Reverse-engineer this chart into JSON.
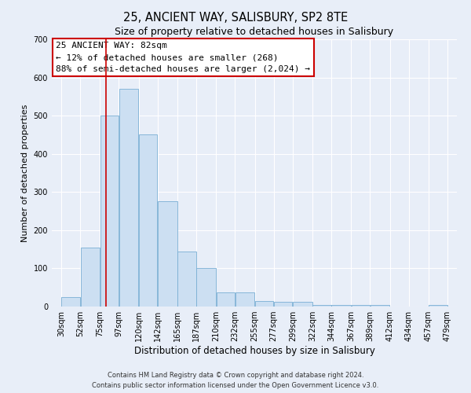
{
  "title": "25, ANCIENT WAY, SALISBURY, SP2 8TE",
  "subtitle": "Size of property relative to detached houses in Salisbury",
  "xlabel": "Distribution of detached houses by size in Salisbury",
  "ylabel": "Number of detached properties",
  "bar_left_edges": [
    30,
    52,
    75,
    97,
    120,
    142,
    165,
    187,
    210,
    232,
    255,
    277,
    299,
    322,
    344,
    367,
    389,
    412,
    434,
    457
  ],
  "bar_heights": [
    25,
    155,
    500,
    570,
    450,
    275,
    145,
    100,
    37,
    37,
    15,
    12,
    12,
    5,
    5,
    5,
    5,
    0,
    0,
    5
  ],
  "bar_widths": [
    22,
    23,
    22,
    23,
    22,
    23,
    22,
    23,
    22,
    23,
    22,
    22,
    23,
    22,
    23,
    22,
    23,
    22,
    23,
    22
  ],
  "bar_color": "#ccdff2",
  "bar_edgecolor": "#7aafd4",
  "vline_x": 82,
  "vline_color": "#cc0000",
  "ylim": [
    0,
    700
  ],
  "yticks": [
    0,
    100,
    200,
    300,
    400,
    500,
    600,
    700
  ],
  "xtick_labels": [
    "30sqm",
    "52sqm",
    "75sqm",
    "97sqm",
    "120sqm",
    "142sqm",
    "165sqm",
    "187sqm",
    "210sqm",
    "232sqm",
    "255sqm",
    "277sqm",
    "299sqm",
    "322sqm",
    "344sqm",
    "367sqm",
    "389sqm",
    "412sqm",
    "434sqm",
    "457sqm",
    "479sqm"
  ],
  "xtick_positions": [
    30,
    52,
    75,
    97,
    120,
    142,
    165,
    187,
    210,
    232,
    255,
    277,
    299,
    322,
    344,
    367,
    389,
    412,
    434,
    457,
    479
  ],
  "annotation_title": "25 ANCIENT WAY: 82sqm",
  "annotation_line1": "← 12% of detached houses are smaller (268)",
  "annotation_line2": "88% of semi-detached houses are larger (2,024) →",
  "annotation_box_facecolor": "#ffffff",
  "annotation_box_edgecolor": "#cc0000",
  "footnote1": "Contains HM Land Registry data © Crown copyright and database right 2024.",
  "footnote2": "Contains public sector information licensed under the Open Government Licence v3.0.",
  "title_fontsize": 10.5,
  "subtitle_fontsize": 9,
  "xlabel_fontsize": 8.5,
  "ylabel_fontsize": 8,
  "tick_fontsize": 7,
  "annotation_fontsize": 8,
  "footnote_fontsize": 6,
  "background_color": "#e8eef8",
  "plot_bg_color": "#e8eef8",
  "xlim_left": 19,
  "xlim_right": 490
}
